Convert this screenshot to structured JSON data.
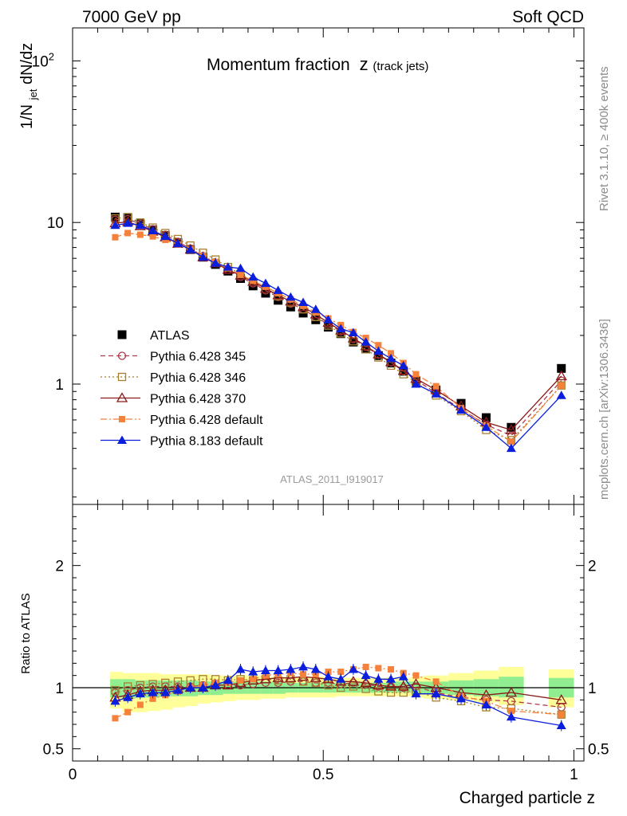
{
  "header": {
    "left_title": "7000 GeV pp",
    "right_title": "Soft QCD",
    "plot_title_main": "Momentum fraction",
    "plot_title_z": "z",
    "plot_title_sub": "(track jets)",
    "analysis_id": "ATLAS_2011_I919017",
    "side_label_top": "Rivet 3.1.10, ≥ 400k events",
    "side_label_bottom": "mcplots.cern.ch [arXiv:1306.3436]"
  },
  "chart_data": [
    {
      "type": "scatter",
      "panel": "main",
      "ylabel_main": "1/N",
      "ylabel_sub": "jet",
      "ylabel_rest": " dN/dz",
      "yscale": "log",
      "ylim": [
        0.18,
        160
      ],
      "xlim": [
        0,
        1.02
      ],
      "y_tick_labels": [
        {
          "v": 1,
          "t": "1"
        },
        {
          "v": 10,
          "t": "10"
        },
        {
          "v": 100,
          "t": "10",
          "sup": "2"
        }
      ],
      "legend_position": "center-left",
      "x": [
        0.085,
        0.11,
        0.135,
        0.16,
        0.185,
        0.21,
        0.235,
        0.26,
        0.285,
        0.31,
        0.335,
        0.36,
        0.385,
        0.41,
        0.435,
        0.46,
        0.485,
        0.51,
        0.535,
        0.56,
        0.585,
        0.61,
        0.635,
        0.66,
        0.685,
        0.725,
        0.775,
        0.825,
        0.875,
        0.975
      ],
      "series": [
        {
          "name": "ATLAS",
          "color": "#000000",
          "marker": "square",
          "line": "none",
          "values": [
            10.8,
            10.7,
            9.8,
            9.0,
            8.3,
            7.5,
            6.8,
            6.1,
            5.5,
            5.0,
            4.5,
            4.05,
            3.65,
            3.3,
            3.0,
            2.75,
            2.5,
            2.25,
            2.05,
            1.82,
            1.65,
            1.5,
            1.35,
            1.2,
            1.05,
            0.92,
            0.76,
            0.62,
            0.54,
            1.25
          ]
        },
        {
          "name": "Pythia 6.428 345",
          "color": "#b03a48",
          "marker": "circle-open",
          "line": "dashed",
          "values": [
            10.4,
            10.5,
            9.8,
            9.1,
            8.4,
            7.6,
            6.9,
            6.2,
            5.6,
            5.1,
            4.6,
            4.2,
            3.8,
            3.45,
            3.15,
            2.9,
            2.6,
            2.35,
            2.12,
            1.9,
            1.7,
            1.52,
            1.36,
            1.2,
            1.06,
            0.88,
            0.7,
            0.56,
            0.48,
            1.05
          ]
        },
        {
          "name": "Pythia 6.428 346",
          "color": "#a88030",
          "marker": "square-open",
          "line": "dotted",
          "values": [
            10.6,
            10.8,
            10.0,
            9.3,
            8.6,
            7.9,
            7.2,
            6.5,
            5.9,
            5.3,
            4.8,
            4.3,
            3.9,
            3.5,
            3.2,
            2.9,
            2.6,
            2.3,
            2.06,
            1.84,
            1.64,
            1.46,
            1.3,
            1.15,
            1.02,
            0.85,
            0.68,
            0.52,
            0.45,
            0.98
          ]
        },
        {
          "name": "Pythia 6.428 370",
          "color": "#8b1a1a",
          "marker": "triangle-open",
          "line": "solid",
          "values": [
            9.9,
            10.1,
            9.5,
            8.8,
            8.1,
            7.4,
            6.8,
            6.1,
            5.6,
            5.1,
            4.7,
            4.3,
            3.9,
            3.55,
            3.25,
            3.0,
            2.7,
            2.4,
            2.15,
            1.92,
            1.72,
            1.53,
            1.37,
            1.21,
            1.08,
            0.92,
            0.73,
            0.58,
            0.52,
            1.12
          ]
        },
        {
          "name": "Pythia 6.428 default",
          "color": "#f5813a",
          "marker": "square-small",
          "line": "dashdot",
          "values": [
            8.1,
            8.6,
            8.4,
            8.2,
            7.8,
            7.3,
            6.8,
            6.2,
            5.7,
            5.2,
            4.75,
            4.35,
            4.0,
            3.65,
            3.35,
            3.05,
            2.78,
            2.55,
            2.32,
            2.1,
            1.93,
            1.74,
            1.55,
            1.35,
            1.15,
            0.97,
            0.71,
            0.55,
            0.44,
            0.98
          ]
        },
        {
          "name": "Pythia 8.183 default",
          "color": "#0a1edc",
          "marker": "triangle",
          "line": "solid",
          "values": [
            9.6,
            9.9,
            9.6,
            8.9,
            8.2,
            7.4,
            6.8,
            6.1,
            5.6,
            5.3,
            5.2,
            4.6,
            4.2,
            3.8,
            3.45,
            3.2,
            2.9,
            2.5,
            2.2,
            2.08,
            1.82,
            1.6,
            1.44,
            1.3,
            1.0,
            0.87,
            0.69,
            0.54,
            0.4,
            0.85
          ]
        }
      ]
    },
    {
      "type": "scatter",
      "panel": "ratio",
      "ylabel": "Ratio to ATLAS",
      "ylim": [
        0.4,
        2.5
      ],
      "xlim": [
        0,
        1.02
      ],
      "xlabel": "Charged particle z",
      "x_tick_labels": [
        {
          "v": 0,
          "t": "0"
        },
        {
          "v": 0.5,
          "t": "0.5"
        },
        {
          "v": 1,
          "t": "1"
        }
      ],
      "y_tick_labels": [
        {
          "v": 0.5,
          "t": "0.5"
        },
        {
          "v": 1,
          "t": "1"
        },
        {
          "v": 2,
          "t": "2"
        }
      ],
      "band_colors": {
        "outer": "#ffff99",
        "inner": "#90ee90"
      },
      "bands": [
        {
          "x0": 0.075,
          "x1": 0.1,
          "y_lo": 0.83,
          "y_hi": 1.13,
          "g_lo": 0.92,
          "g_hi": 1.07
        },
        {
          "x0": 0.1,
          "x1": 0.125,
          "y_lo": 0.8,
          "y_hi": 1.12,
          "g_lo": 0.91,
          "g_hi": 1.07
        },
        {
          "x0": 0.125,
          "x1": 0.15,
          "y_lo": 0.8,
          "y_hi": 1.12,
          "g_lo": 0.92,
          "g_hi": 1.06
        },
        {
          "x0": 0.15,
          "x1": 0.175,
          "y_lo": 0.81,
          "y_hi": 1.12,
          "g_lo": 0.92,
          "g_hi": 1.06
        },
        {
          "x0": 0.175,
          "x1": 0.2,
          "y_lo": 0.82,
          "y_hi": 1.11,
          "g_lo": 0.93,
          "g_hi": 1.06
        },
        {
          "x0": 0.2,
          "x1": 0.225,
          "y_lo": 0.84,
          "y_hi": 1.11,
          "g_lo": 0.93,
          "g_hi": 1.06
        },
        {
          "x0": 0.225,
          "x1": 0.25,
          "y_lo": 0.85,
          "y_hi": 1.11,
          "g_lo": 0.93,
          "g_hi": 1.06
        },
        {
          "x0": 0.25,
          "x1": 0.275,
          "y_lo": 0.87,
          "y_hi": 1.11,
          "g_lo": 0.94,
          "g_hi": 1.05
        },
        {
          "x0": 0.275,
          "x1": 0.3,
          "y_lo": 0.88,
          "y_hi": 1.1,
          "g_lo": 0.94,
          "g_hi": 1.05
        },
        {
          "x0": 0.3,
          "x1": 0.325,
          "y_lo": 0.89,
          "y_hi": 1.1,
          "g_lo": 0.95,
          "g_hi": 1.05
        },
        {
          "x0": 0.325,
          "x1": 0.35,
          "y_lo": 0.9,
          "y_hi": 1.1,
          "g_lo": 0.95,
          "g_hi": 1.05
        },
        {
          "x0": 0.35,
          "x1": 0.375,
          "y_lo": 0.9,
          "y_hi": 1.1,
          "g_lo": 0.95,
          "g_hi": 1.05
        },
        {
          "x0": 0.375,
          "x1": 0.4,
          "y_lo": 0.91,
          "y_hi": 1.09,
          "g_lo": 0.95,
          "g_hi": 1.05
        },
        {
          "x0": 0.4,
          "x1": 0.425,
          "y_lo": 0.91,
          "y_hi": 1.09,
          "g_lo": 0.95,
          "g_hi": 1.05
        },
        {
          "x0": 0.425,
          "x1": 0.45,
          "y_lo": 0.92,
          "y_hi": 1.09,
          "g_lo": 0.96,
          "g_hi": 1.04
        },
        {
          "x0": 0.45,
          "x1": 0.475,
          "y_lo": 0.92,
          "y_hi": 1.09,
          "g_lo": 0.96,
          "g_hi": 1.04
        },
        {
          "x0": 0.475,
          "x1": 0.5,
          "y_lo": 0.92,
          "y_hi": 1.09,
          "g_lo": 0.96,
          "g_hi": 1.04
        },
        {
          "x0": 0.5,
          "x1": 0.525,
          "y_lo": 0.92,
          "y_hi": 1.08,
          "g_lo": 0.96,
          "g_hi": 1.04
        },
        {
          "x0": 0.525,
          "x1": 0.55,
          "y_lo": 0.93,
          "y_hi": 1.08,
          "g_lo": 0.96,
          "g_hi": 1.04
        },
        {
          "x0": 0.55,
          "x1": 0.575,
          "y_lo": 0.93,
          "y_hi": 1.08,
          "g_lo": 0.96,
          "g_hi": 1.04
        },
        {
          "x0": 0.575,
          "x1": 0.6,
          "y_lo": 0.93,
          "y_hi": 1.08,
          "g_lo": 0.96,
          "g_hi": 1.04
        },
        {
          "x0": 0.6,
          "x1": 0.625,
          "y_lo": 0.93,
          "y_hi": 1.08,
          "g_lo": 0.96,
          "g_hi": 1.04
        },
        {
          "x0": 0.625,
          "x1": 0.65,
          "y_lo": 0.93,
          "y_hi": 1.08,
          "g_lo": 0.96,
          "g_hi": 1.05
        },
        {
          "x0": 0.65,
          "x1": 0.675,
          "y_lo": 0.93,
          "y_hi": 1.08,
          "g_lo": 0.96,
          "g_hi": 1.05
        },
        {
          "x0": 0.675,
          "x1": 0.7,
          "y_lo": 0.92,
          "y_hi": 1.09,
          "g_lo": 0.95,
          "g_hi": 1.05
        },
        {
          "x0": 0.7,
          "x1": 0.75,
          "y_lo": 0.91,
          "y_hi": 1.1,
          "g_lo": 0.95,
          "g_hi": 1.05
        },
        {
          "x0": 0.75,
          "x1": 0.8,
          "y_lo": 0.9,
          "y_hi": 1.12,
          "g_lo": 0.94,
          "g_hi": 1.06
        },
        {
          "x0": 0.8,
          "x1": 0.85,
          "y_lo": 0.88,
          "y_hi": 1.14,
          "g_lo": 0.93,
          "g_hi": 1.07
        },
        {
          "x0": 0.85,
          "x1": 0.9,
          "y_lo": 0.86,
          "y_hi": 1.17,
          "g_lo": 0.92,
          "g_hi": 1.09
        },
        {
          "x0": 0.95,
          "x1": 1.0,
          "y_lo": 0.84,
          "y_hi": 1.15,
          "g_lo": 0.92,
          "g_hi": 1.08
        }
      ],
      "x": [
        0.085,
        0.11,
        0.135,
        0.16,
        0.185,
        0.21,
        0.235,
        0.26,
        0.285,
        0.31,
        0.335,
        0.36,
        0.385,
        0.41,
        0.435,
        0.46,
        0.485,
        0.51,
        0.535,
        0.56,
        0.585,
        0.61,
        0.635,
        0.66,
        0.685,
        0.725,
        0.775,
        0.825,
        0.875,
        0.975
      ],
      "series": [
        {
          "name": "Pythia 6.428 345",
          "color": "#b03a48",
          "marker": "circle-open",
          "line": "dashed",
          "values": [
            0.96,
            0.98,
            1.0,
            1.01,
            1.01,
            1.01,
            1.01,
            1.02,
            1.02,
            1.02,
            1.02,
            1.03,
            1.04,
            1.04,
            1.05,
            1.05,
            1.04,
            1.04,
            1.03,
            1.04,
            1.03,
            1.01,
            1.01,
            1.0,
            1.01,
            0.96,
            0.92,
            0.9,
            0.89,
            0.84
          ]
        },
        {
          "name": "Pythia 6.428 346",
          "color": "#a88030",
          "marker": "square-open",
          "line": "dotted",
          "values": [
            0.98,
            1.01,
            1.02,
            1.03,
            1.04,
            1.05,
            1.06,
            1.07,
            1.07,
            1.06,
            1.07,
            1.06,
            1.07,
            1.06,
            1.07,
            1.05,
            1.04,
            1.02,
            1.0,
            1.01,
            0.99,
            0.97,
            0.96,
            0.96,
            0.97,
            0.92,
            0.89,
            0.84,
            0.83,
            0.78
          ]
        },
        {
          "name": "Pythia 6.428 370",
          "color": "#8b1a1a",
          "marker": "triangle-open",
          "line": "solid",
          "values": [
            0.92,
            0.94,
            0.97,
            0.98,
            0.98,
            0.99,
            1.0,
            1.0,
            1.02,
            1.02,
            1.04,
            1.06,
            1.07,
            1.08,
            1.08,
            1.09,
            1.08,
            1.07,
            1.05,
            1.05,
            1.04,
            1.02,
            1.01,
            1.01,
            1.03,
            1.0,
            0.96,
            0.94,
            0.96,
            0.9
          ]
        },
        {
          "name": "Pythia 6.428 default",
          "color": "#f5813a",
          "marker": "square-small",
          "line": "dashdot",
          "values": [
            0.75,
            0.8,
            0.86,
            0.91,
            0.94,
            0.97,
            1.0,
            1.02,
            1.04,
            1.04,
            1.06,
            1.07,
            1.1,
            1.11,
            1.12,
            1.11,
            1.11,
            1.13,
            1.13,
            1.15,
            1.17,
            1.16,
            1.15,
            1.12,
            1.1,
            1.05,
            0.93,
            0.89,
            0.81,
            0.78
          ]
        },
        {
          "name": "Pythia 8.183 default",
          "color": "#0a1edc",
          "marker": "triangle",
          "line": "solid",
          "values": [
            0.89,
            0.92,
            0.95,
            0.96,
            0.96,
            0.98,
            1.0,
            1.0,
            1.02,
            1.06,
            1.15,
            1.13,
            1.14,
            1.14,
            1.15,
            1.17,
            1.15,
            1.09,
            1.07,
            1.15,
            1.1,
            1.07,
            1.07,
            1.09,
            0.95,
            0.95,
            0.91,
            0.86,
            0.76,
            0.69
          ]
        }
      ]
    }
  ]
}
